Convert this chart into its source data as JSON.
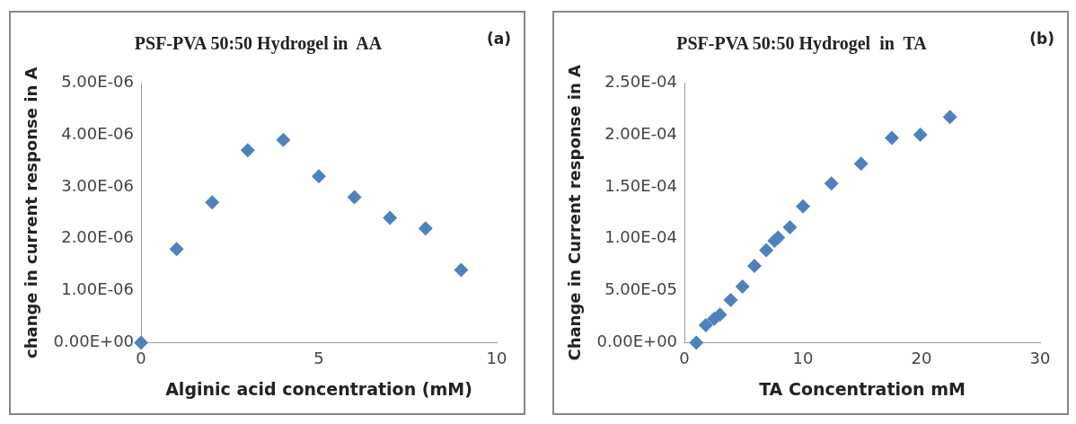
{
  "chart_data": [
    {
      "type": "scatter",
      "title": "PSF-PVA 50:50 Hydrogel in  AA",
      "xlabel": "Alginic acid concentration (mM)",
      "ylabel": "change in current response in A",
      "annotations": [
        "(a)"
      ],
      "x": [
        0,
        1,
        2,
        3,
        4,
        5,
        6,
        7,
        8,
        9
      ],
      "series": [
        {
          "color": "#4f81bd",
          "values": [
            0,
            1.8e-06,
            2.7e-06,
            3.7e-06,
            3.9e-06,
            3.2e-06,
            2.8e-06,
            2.4e-06,
            2.2e-06,
            1.4e-06
          ]
        }
      ],
      "xlim": [
        0,
        10
      ],
      "xticks": [
        0,
        5,
        10
      ],
      "ylim": [
        0,
        5e-06
      ],
      "yticks": [
        {
          "value": 0,
          "label": "0.00E+00"
        },
        {
          "value": 1e-06,
          "label": "1.00E-06"
        },
        {
          "value": 2e-06,
          "label": "2.00E-06"
        },
        {
          "value": 3e-06,
          "label": "3.00E-06"
        },
        {
          "value": 4e-06,
          "label": "4.00E-06"
        },
        {
          "value": 5e-06,
          "label": "5.00E-06"
        }
      ],
      "grid": false,
      "legend": false,
      "marker": "diamond"
    },
    {
      "type": "scatter",
      "title": "PSF-PVA 50:50 Hydrogel  in  TA",
      "xlabel": "TA Concentration mM",
      "ylabel": "Change in Current response in A",
      "annotations": [
        "(b)"
      ],
      "x": [
        1,
        1.8,
        2.5,
        3,
        3.9,
        4.9,
        5.9,
        6.9,
        7.6,
        7.9,
        8.9,
        10,
        12.4,
        14.9,
        17.5,
        19.9,
        22.4
      ],
      "series": [
        {
          "color": "#4f81bd",
          "values": [
            0,
            1.7e-05,
            2.3e-05,
            2.7e-05,
            4.1e-05,
            5.4e-05,
            7.4e-05,
            8.9e-05,
            9.8e-05,
            0.000101,
            0.000111,
            0.000131,
            0.000153,
            0.000172,
            0.000197,
            0.0002,
            0.000217
          ]
        }
      ],
      "xlim": [
        0,
        30
      ],
      "xticks": [
        0,
        10,
        20,
        30
      ],
      "ylim": [
        0,
        0.00025
      ],
      "yticks": [
        {
          "value": 0,
          "label": "0.00E+00"
        },
        {
          "value": 5e-05,
          "label": "5.00E-05"
        },
        {
          "value": 0.0001,
          "label": "1.00E-04"
        },
        {
          "value": 0.00015,
          "label": "1.50E-04"
        },
        {
          "value": 0.0002,
          "label": "2.00E-04"
        },
        {
          "value": 0.00025,
          "label": "2.50E-04"
        }
      ],
      "grid": false,
      "legend": false,
      "marker": "diamond"
    }
  ]
}
